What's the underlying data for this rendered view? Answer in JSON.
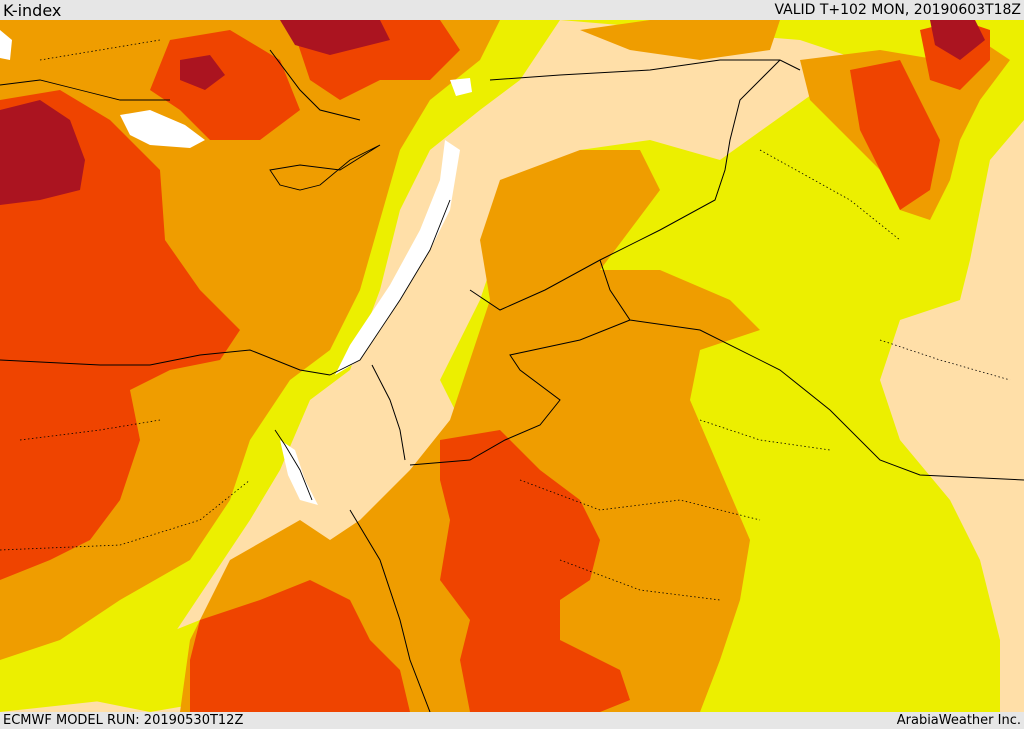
{
  "header": {
    "title": "K-index",
    "valid": "VALID T+102 MON, 20190603T18Z"
  },
  "footer": {
    "model_run": "ECMWF MODEL RUN: 20190530T12Z",
    "credit": "ArabiaWeather Inc."
  },
  "colors": {
    "k_level_0": "#ffdfa8",
    "k_level_1": "#ecef00",
    "k_level_2": "#ef9d00",
    "k_level_3": "#ef4400",
    "k_level_4": "#ab1420",
    "water": "#ffffff",
    "boundary": "#000000"
  }
}
